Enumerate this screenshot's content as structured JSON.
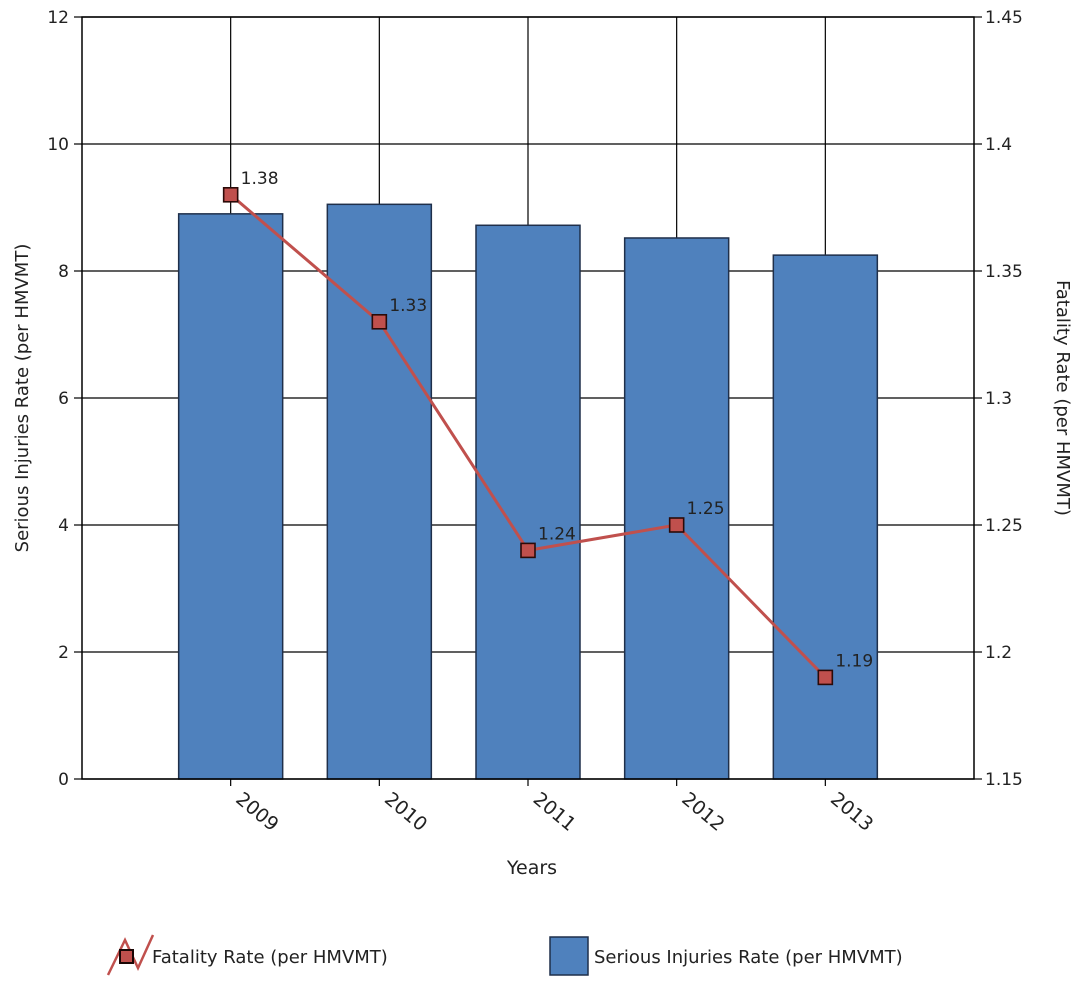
{
  "chart_data": {
    "type": "bar",
    "categories": [
      "2009",
      "2010",
      "2011",
      "2012",
      "2013"
    ],
    "xlabel": "Years",
    "ylabel_left": "Serious Injuries Rate (per HMVMT)",
    "ylabel_right": "Fatality Rate (per HMVMT)",
    "ylim_left": [
      0,
      12
    ],
    "ylim_right": [
      1.15,
      1.45
    ],
    "yticks_left": [
      "0",
      "2",
      "4",
      "6",
      "8",
      "10",
      "12"
    ],
    "yticks_right": [
      "1.15",
      "1.2",
      "1.25",
      "1.3",
      "1.35",
      "1.4",
      "1.45"
    ],
    "grid": true,
    "legend_position": "bottom",
    "series": [
      {
        "name": "Serious Injuries Rate (per HMVMT)",
        "type": "bar",
        "axis": "left",
        "color": "#4f81bd",
        "values": [
          8.9,
          9.05,
          8.72,
          8.52,
          8.25
        ]
      },
      {
        "name": "Fatality Rate (per HMVMT)",
        "type": "line",
        "axis": "right",
        "color": "#c0504d",
        "values": [
          1.38,
          1.33,
          1.24,
          1.25,
          1.19
        ],
        "data_labels": [
          "1.38",
          "1.33",
          "1.24",
          "1.25",
          "1.19"
        ]
      }
    ]
  }
}
